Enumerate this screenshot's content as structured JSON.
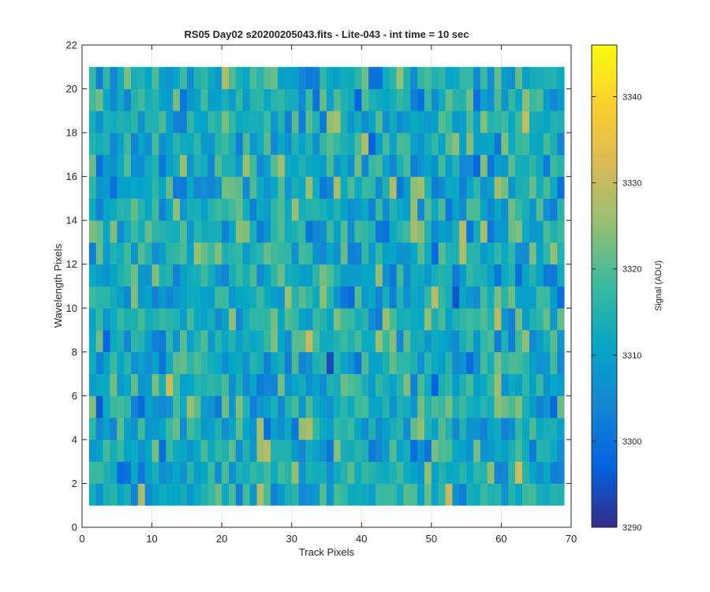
{
  "chart_data": {
    "type": "heatmap",
    "title": "RS05 Day02  s20200205043.fits - Lite-043 - int time = 10 sec",
    "xlabel": "Track Pixels",
    "ylabel": "Wavelength Pixels",
    "xlim": [
      0,
      70
    ],
    "ylim": [
      0,
      22
    ],
    "x_ticks": [
      0,
      10,
      20,
      30,
      40,
      50,
      60,
      70
    ],
    "y_ticks": [
      0,
      2,
      4,
      6,
      8,
      10,
      12,
      14,
      16,
      18,
      20,
      22
    ],
    "x_range": [
      1,
      69
    ],
    "y_range": [
      1,
      21
    ],
    "colormap": "parula",
    "grid": true,
    "colorbar": {
      "label": "Signal (ADU)",
      "range": [
        3290,
        3346
      ],
      "ticks": [
        3290,
        3300,
        3310,
        3320,
        3330,
        3340
      ]
    },
    "approximate_values": "noise field; typical signal ~3312 ADU with spread ~±15 ADU"
  }
}
